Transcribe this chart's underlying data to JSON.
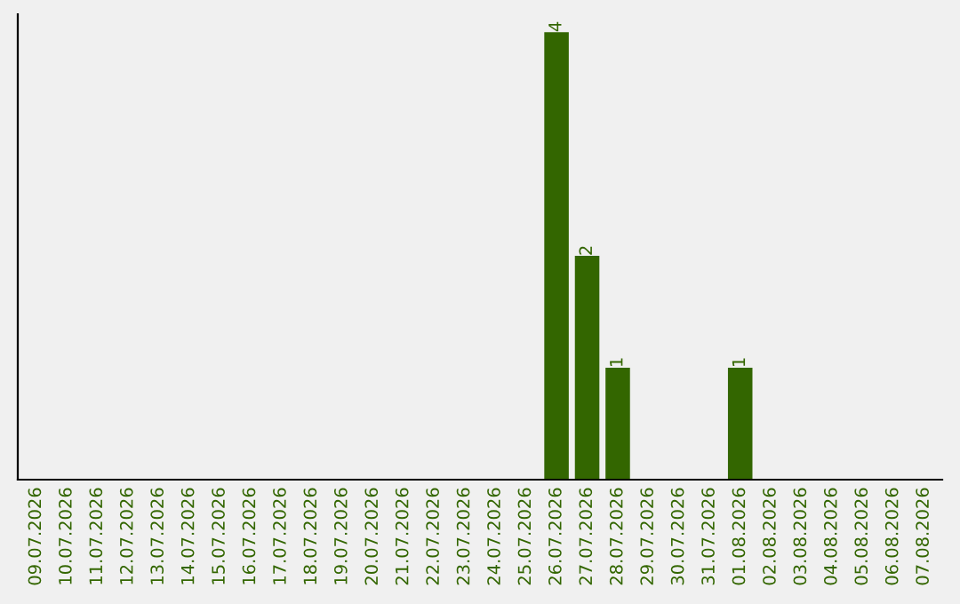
{
  "chart_data": {
    "type": "bar",
    "categories": [
      "09.07.2026",
      "10.07.2026",
      "11.07.2026",
      "12.07.2026",
      "13.07.2026",
      "14.07.2026",
      "15.07.2026",
      "16.07.2026",
      "17.07.2026",
      "18.07.2026",
      "19.07.2026",
      "20.07.2026",
      "21.07.2026",
      "22.07.2026",
      "23.07.2026",
      "24.07.2026",
      "25.07.2026",
      "26.07.2026",
      "27.07.2026",
      "28.07.2026",
      "29.07.2026",
      "30.07.2026",
      "31.07.2026",
      "01.08.2026",
      "02.08.2026",
      "03.08.2026",
      "04.08.2026",
      "05.08.2026",
      "06.08.2026",
      "07.08.2026"
    ],
    "values": [
      null,
      null,
      null,
      null,
      null,
      null,
      null,
      null,
      null,
      null,
      null,
      null,
      null,
      null,
      null,
      null,
      null,
      4,
      2,
      1,
      null,
      null,
      null,
      1,
      null,
      null,
      null,
      null,
      null,
      null
    ],
    "data_labels": true,
    "color": "#336600",
    "tick_labels": "x",
    "grid": false,
    "legend": false
  }
}
